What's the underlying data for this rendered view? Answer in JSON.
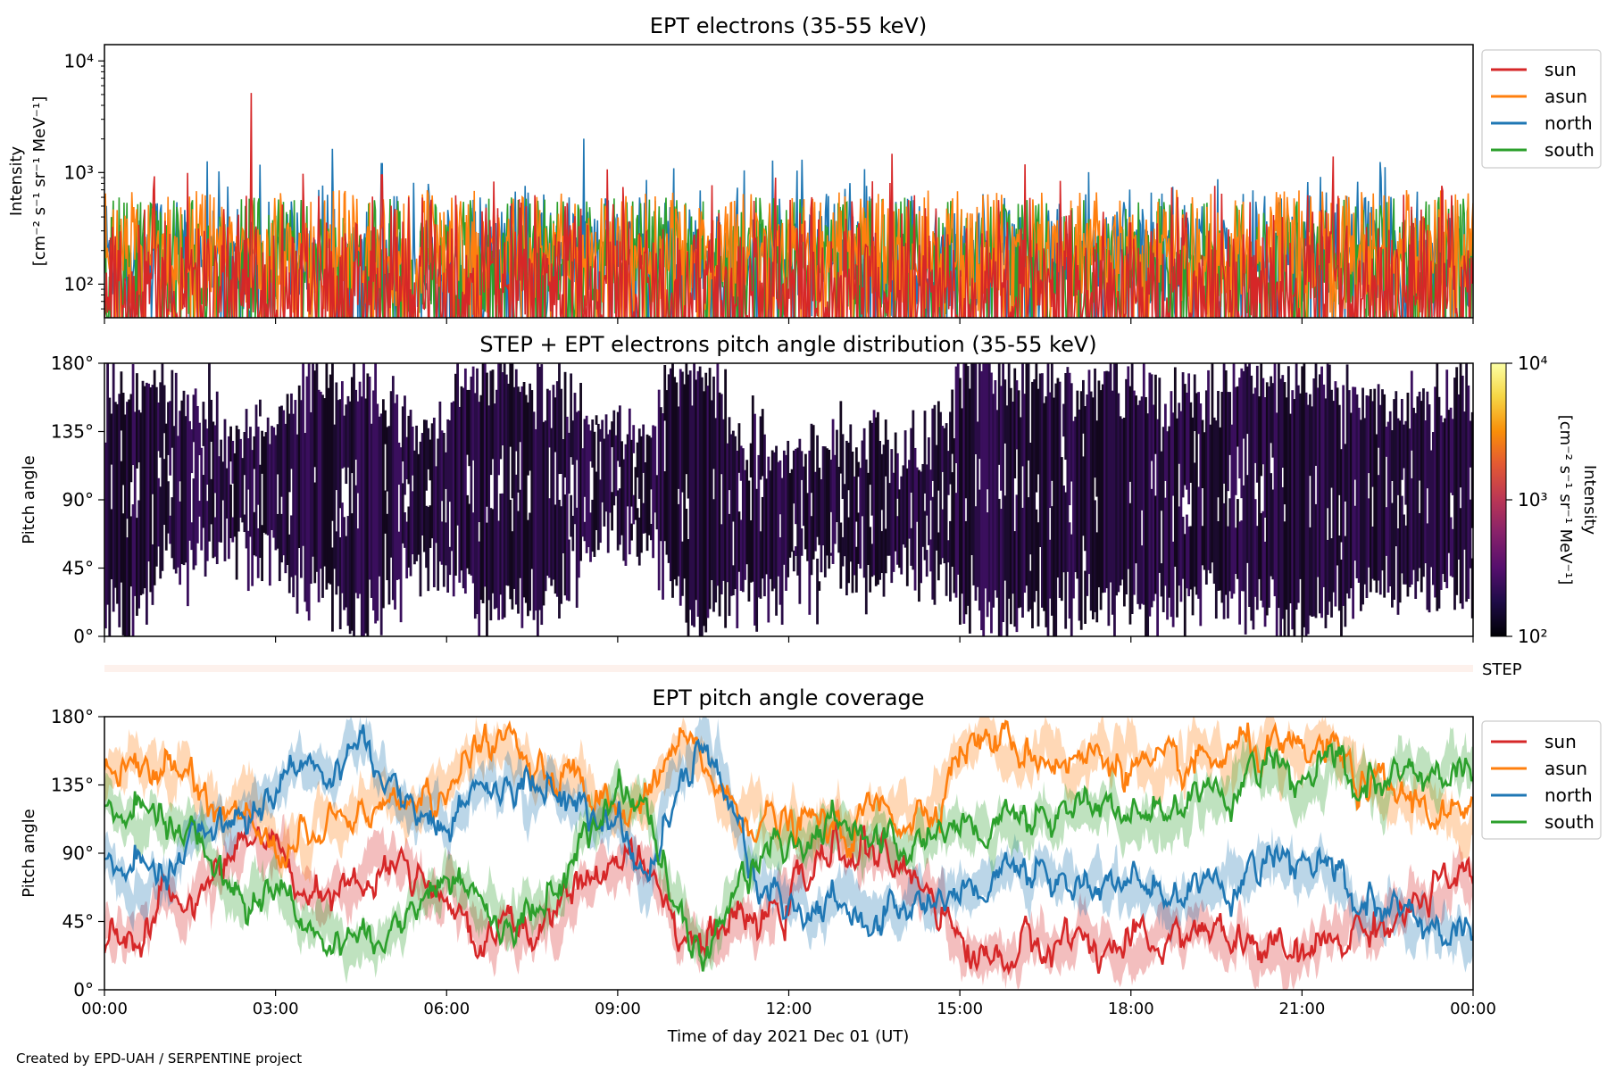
{
  "footer": "Created by EPD-UAH / SERPENTINE project",
  "chart_data": [
    {
      "id": "intensity",
      "type": "line",
      "title": "EPT electrons (35-55 keV)",
      "ylabel_line1": "Intensity",
      "ylabel_line2": "[cm⁻² s⁻¹ sr⁻¹ MeV⁻¹]",
      "yscale": "log",
      "ylim": [
        50,
        14000
      ],
      "yticks": [
        100,
        1000,
        10000
      ],
      "ytick_labels": [
        "10²",
        "10³",
        "10⁴"
      ],
      "xlim": [
        "00:00",
        "24:00"
      ],
      "legend_position": "outside-right",
      "series": [
        {
          "name": "sun",
          "color": "#d62728",
          "baseline": 100,
          "spread": 0.25,
          "spike": {
            "x": "04:52",
            "value": 950
          }
        },
        {
          "name": "asun",
          "color": "#ff7f0e",
          "baseline": 200,
          "spread": 0.18,
          "max": 700
        },
        {
          "name": "north",
          "color": "#1f77b4",
          "baseline": 180,
          "spread": 0.2,
          "spike": {
            "x": "04:52",
            "value": 1200
          }
        },
        {
          "name": "south",
          "color": "#2ca02c",
          "baseline": 180,
          "spread": 0.2,
          "max": 600
        }
      ]
    },
    {
      "id": "pad",
      "type": "heatmap",
      "title": "STEP + EPT electrons pitch angle distribution (35-55 keV)",
      "ylabel": "Pitch angle",
      "ylim": [
        0,
        180
      ],
      "yticks": [
        0,
        45,
        90,
        135,
        180
      ],
      "ytick_labels": [
        "0°",
        "45°",
        "90°",
        "135°",
        "180°"
      ],
      "colorbar": {
        "label": "Intensity",
        "units": "[cm⁻² s⁻¹ sr⁻¹ MeV⁻¹]",
        "scale": "log",
        "range": [
          100,
          10000
        ],
        "tick_labels": [
          "10²",
          "10³",
          "10⁴"
        ],
        "colormap": "inferno"
      },
      "typical_intensity": 150
    },
    {
      "id": "step",
      "type": "bar",
      "label": "STEP",
      "color": "#fdf1ec"
    },
    {
      "id": "coverage",
      "type": "line",
      "title": "EPT pitch angle coverage",
      "ylabel": "Pitch angle",
      "xlabel": "Time of day 2021 Dec 01 (UT)",
      "ylim": [
        0,
        180
      ],
      "yticks": [
        0,
        45,
        90,
        135,
        180
      ],
      "ytick_labels": [
        "0°",
        "45°",
        "90°",
        "135°",
        "180°"
      ],
      "x_tick_labels": [
        "00:00",
        "03:00",
        "06:00",
        "09:00",
        "12:00",
        "15:00",
        "18:00",
        "21:00",
        "00:00"
      ],
      "band_halfwidth_deg": 12,
      "legend_position": "outside-right",
      "series": [
        {
          "name": "sun",
          "color": "#d62728",
          "x_hours": [
            0,
            0.5,
            1,
            1.5,
            2,
            2.5,
            3,
            3.5,
            4,
            4.5,
            5,
            5.5,
            6,
            6.5,
            7,
            7.5,
            8,
            8.5,
            9,
            9.5,
            10,
            10.5,
            11,
            11.5,
            12,
            12.5,
            13,
            13.5,
            14,
            14.5,
            15,
            15.5,
            16,
            16.5,
            17,
            17.5,
            18,
            18.5,
            19,
            19.5,
            20,
            20.5,
            21,
            21.5,
            22,
            22.5,
            23,
            23.5,
            24
          ],
          "values": [
            35,
            25,
            60,
            55,
            80,
            100,
            95,
            65,
            70,
            75,
            85,
            80,
            60,
            30,
            40,
            35,
            50,
            70,
            90,
            80,
            45,
            30,
            45,
            40,
            60,
            80,
            95,
            90,
            75,
            70,
            30,
            20,
            25,
            30,
            35,
            30,
            25,
            30,
            40,
            35,
            30,
            25,
            20,
            30,
            40,
            45,
            55,
            70,
            65
          ]
        },
        {
          "name": "asun",
          "color": "#ff7f0e",
          "x_hours": [
            0,
            0.5,
            1,
            1.5,
            2,
            2.5,
            3,
            3.5,
            4,
            4.5,
            5,
            5.5,
            6,
            6.5,
            7,
            7.5,
            8,
            8.5,
            9,
            9.5,
            10,
            10.5,
            11,
            11.5,
            12,
            12.5,
            13,
            13.5,
            14,
            14.5,
            15,
            15.5,
            16,
            16.5,
            17,
            17.5,
            18,
            18.5,
            19,
            19.5,
            20,
            20.5,
            21,
            21.5,
            22,
            22.5,
            23,
            23.5,
            24
          ],
          "values": [
            145,
            155,
            150,
            145,
            120,
            125,
            90,
            100,
            110,
            120,
            130,
            115,
            140,
            160,
            165,
            150,
            140,
            130,
            110,
            120,
            160,
            150,
            120,
            115,
            105,
            110,
            100,
            120,
            115,
            120,
            160,
            165,
            160,
            155,
            150,
            155,
            150,
            140,
            145,
            150,
            160,
            155,
            150,
            160,
            135,
            130,
            125,
            115,
            110
          ]
        },
        {
          "name": "north",
          "color": "#1f77b4",
          "x_hours": [
            0,
            0.5,
            1,
            1.5,
            2,
            2.5,
            3,
            3.5,
            4,
            4.5,
            5,
            5.5,
            6,
            6.5,
            7,
            7.5,
            8,
            8.5,
            9,
            9.5,
            10,
            10.5,
            11,
            11.5,
            12,
            12.5,
            13,
            13.5,
            14,
            14.5,
            15,
            15.5,
            16,
            16.5,
            17,
            17.5,
            18,
            18.5,
            19,
            19.5,
            20,
            20.5,
            21,
            21.5,
            22,
            22.5,
            23,
            23.5,
            24
          ],
          "values": [
            85,
            80,
            70,
            100,
            110,
            120,
            130,
            150,
            145,
            160,
            140,
            120,
            110,
            130,
            140,
            135,
            130,
            120,
            110,
            70,
            130,
            165,
            120,
            65,
            55,
            50,
            55,
            45,
            60,
            55,
            65,
            70,
            80,
            75,
            70,
            65,
            70,
            60,
            60,
            70,
            75,
            80,
            85,
            75,
            55,
            50,
            45,
            40,
            40
          ]
        },
        {
          "name": "south",
          "color": "#2ca02c",
          "x_hours": [
            0,
            0.5,
            1,
            1.5,
            2,
            2.5,
            3,
            3.5,
            4,
            4.5,
            5,
            5.5,
            6,
            6.5,
            7,
            7.5,
            8,
            8.5,
            9,
            9.5,
            10,
            10.5,
            11,
            11.5,
            12,
            12.5,
            13,
            13.5,
            14,
            14.5,
            15,
            15.5,
            16,
            16.5,
            17,
            17.5,
            18,
            18.5,
            19,
            19.5,
            20,
            20.5,
            21,
            21.5,
            22,
            22.5,
            23,
            23.5,
            24
          ],
          "values": [
            120,
            115,
            110,
            105,
            80,
            60,
            70,
            40,
            35,
            30,
            40,
            60,
            80,
            60,
            45,
            50,
            70,
            110,
            130,
            120,
            60,
            20,
            60,
            90,
            95,
            100,
            110,
            105,
            95,
            100,
            110,
            105,
            115,
            110,
            125,
            120,
            110,
            115,
            120,
            130,
            140,
            145,
            135,
            150,
            130,
            135,
            140,
            145,
            145
          ]
        }
      ]
    }
  ]
}
